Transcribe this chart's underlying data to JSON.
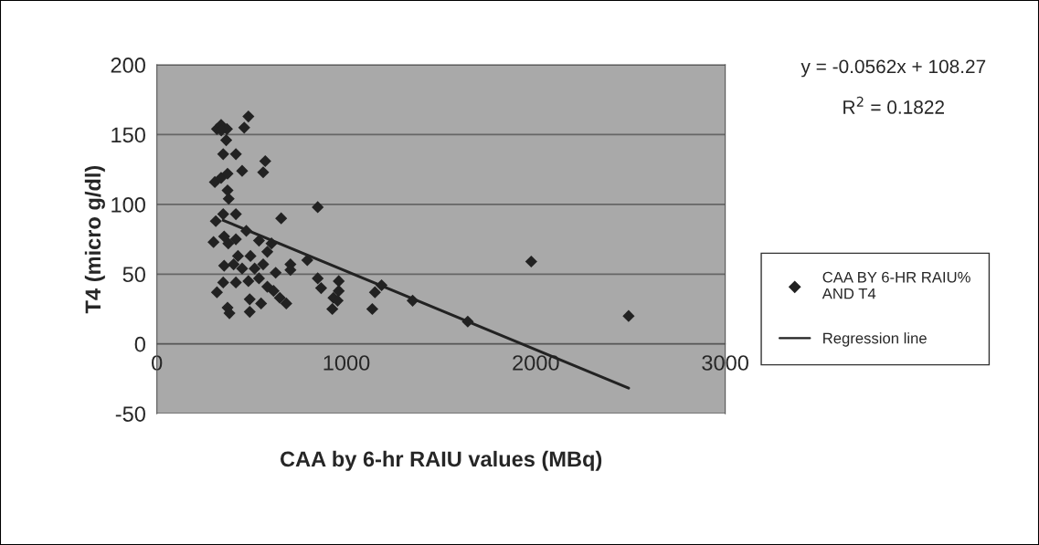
{
  "chart_data": {
    "type": "scatter",
    "xlabel": "CAA by 6-hr RAIU values (MBq)",
    "ylabel": "T4 (micro g/dl)",
    "xlim": [
      0,
      3000
    ],
    "xticks": [
      0,
      1000,
      2000,
      3000
    ],
    "ylim": [
      -50,
      200
    ],
    "yticks": [
      -50,
      0,
      50,
      100,
      150,
      200
    ],
    "grid": "y",
    "legend": "right",
    "marker": "diamond",
    "annotations": [
      "y = -0.0562x + 108.27",
      "R$^{2}$ = 0.1822"
    ],
    "series": [
      {
        "name": "CAA BY 6-HR RAIU%\nAND T4",
        "color": "#222222",
        "x": [
          483,
          317,
          339,
          370,
          340,
          366,
          461,
          350,
          417,
          306,
          339,
          373,
          450,
          373,
          379,
          572,
          561,
          417,
          350,
          311,
          849,
          656,
          299,
          355,
          377,
          417,
          472,
          539,
          605,
          583,
          494,
          428,
          405,
          355,
          450,
          516,
          561,
          627,
          539,
          483,
          417,
          350,
          317,
          583,
          616,
          649,
          683,
          550,
          490,
          490,
          373,
          383,
          705,
          705,
          794,
          849,
          867,
          960,
          960,
          932,
          954,
          926,
          1151,
          1186,
          1137,
          1350,
          1641,
          1976,
          2490
        ],
        "values": [
          163,
          154,
          157,
          154,
          153,
          146,
          155,
          136,
          136,
          116,
          119,
          122,
          124,
          110,
          104,
          131,
          123,
          93,
          93,
          88,
          98,
          90,
          73,
          77,
          72,
          75,
          81,
          74,
          72,
          66,
          63,
          63,
          57,
          56,
          54,
          54,
          57,
          51,
          47,
          45,
          44,
          44,
          37,
          41,
          38,
          33,
          29,
          29,
          32,
          23,
          26,
          22,
          57,
          53,
          60,
          47,
          40,
          45,
          38,
          33,
          31,
          25,
          37,
          42,
          25,
          31,
          16,
          59,
          20
        ]
      },
      {
        "name": "Regression line",
        "type": "line",
        "color": "#222222",
        "marker": "none",
        "x": [
          350,
          2490
        ],
        "values": [
          88.6,
          -31.7
        ]
      }
    ]
  }
}
